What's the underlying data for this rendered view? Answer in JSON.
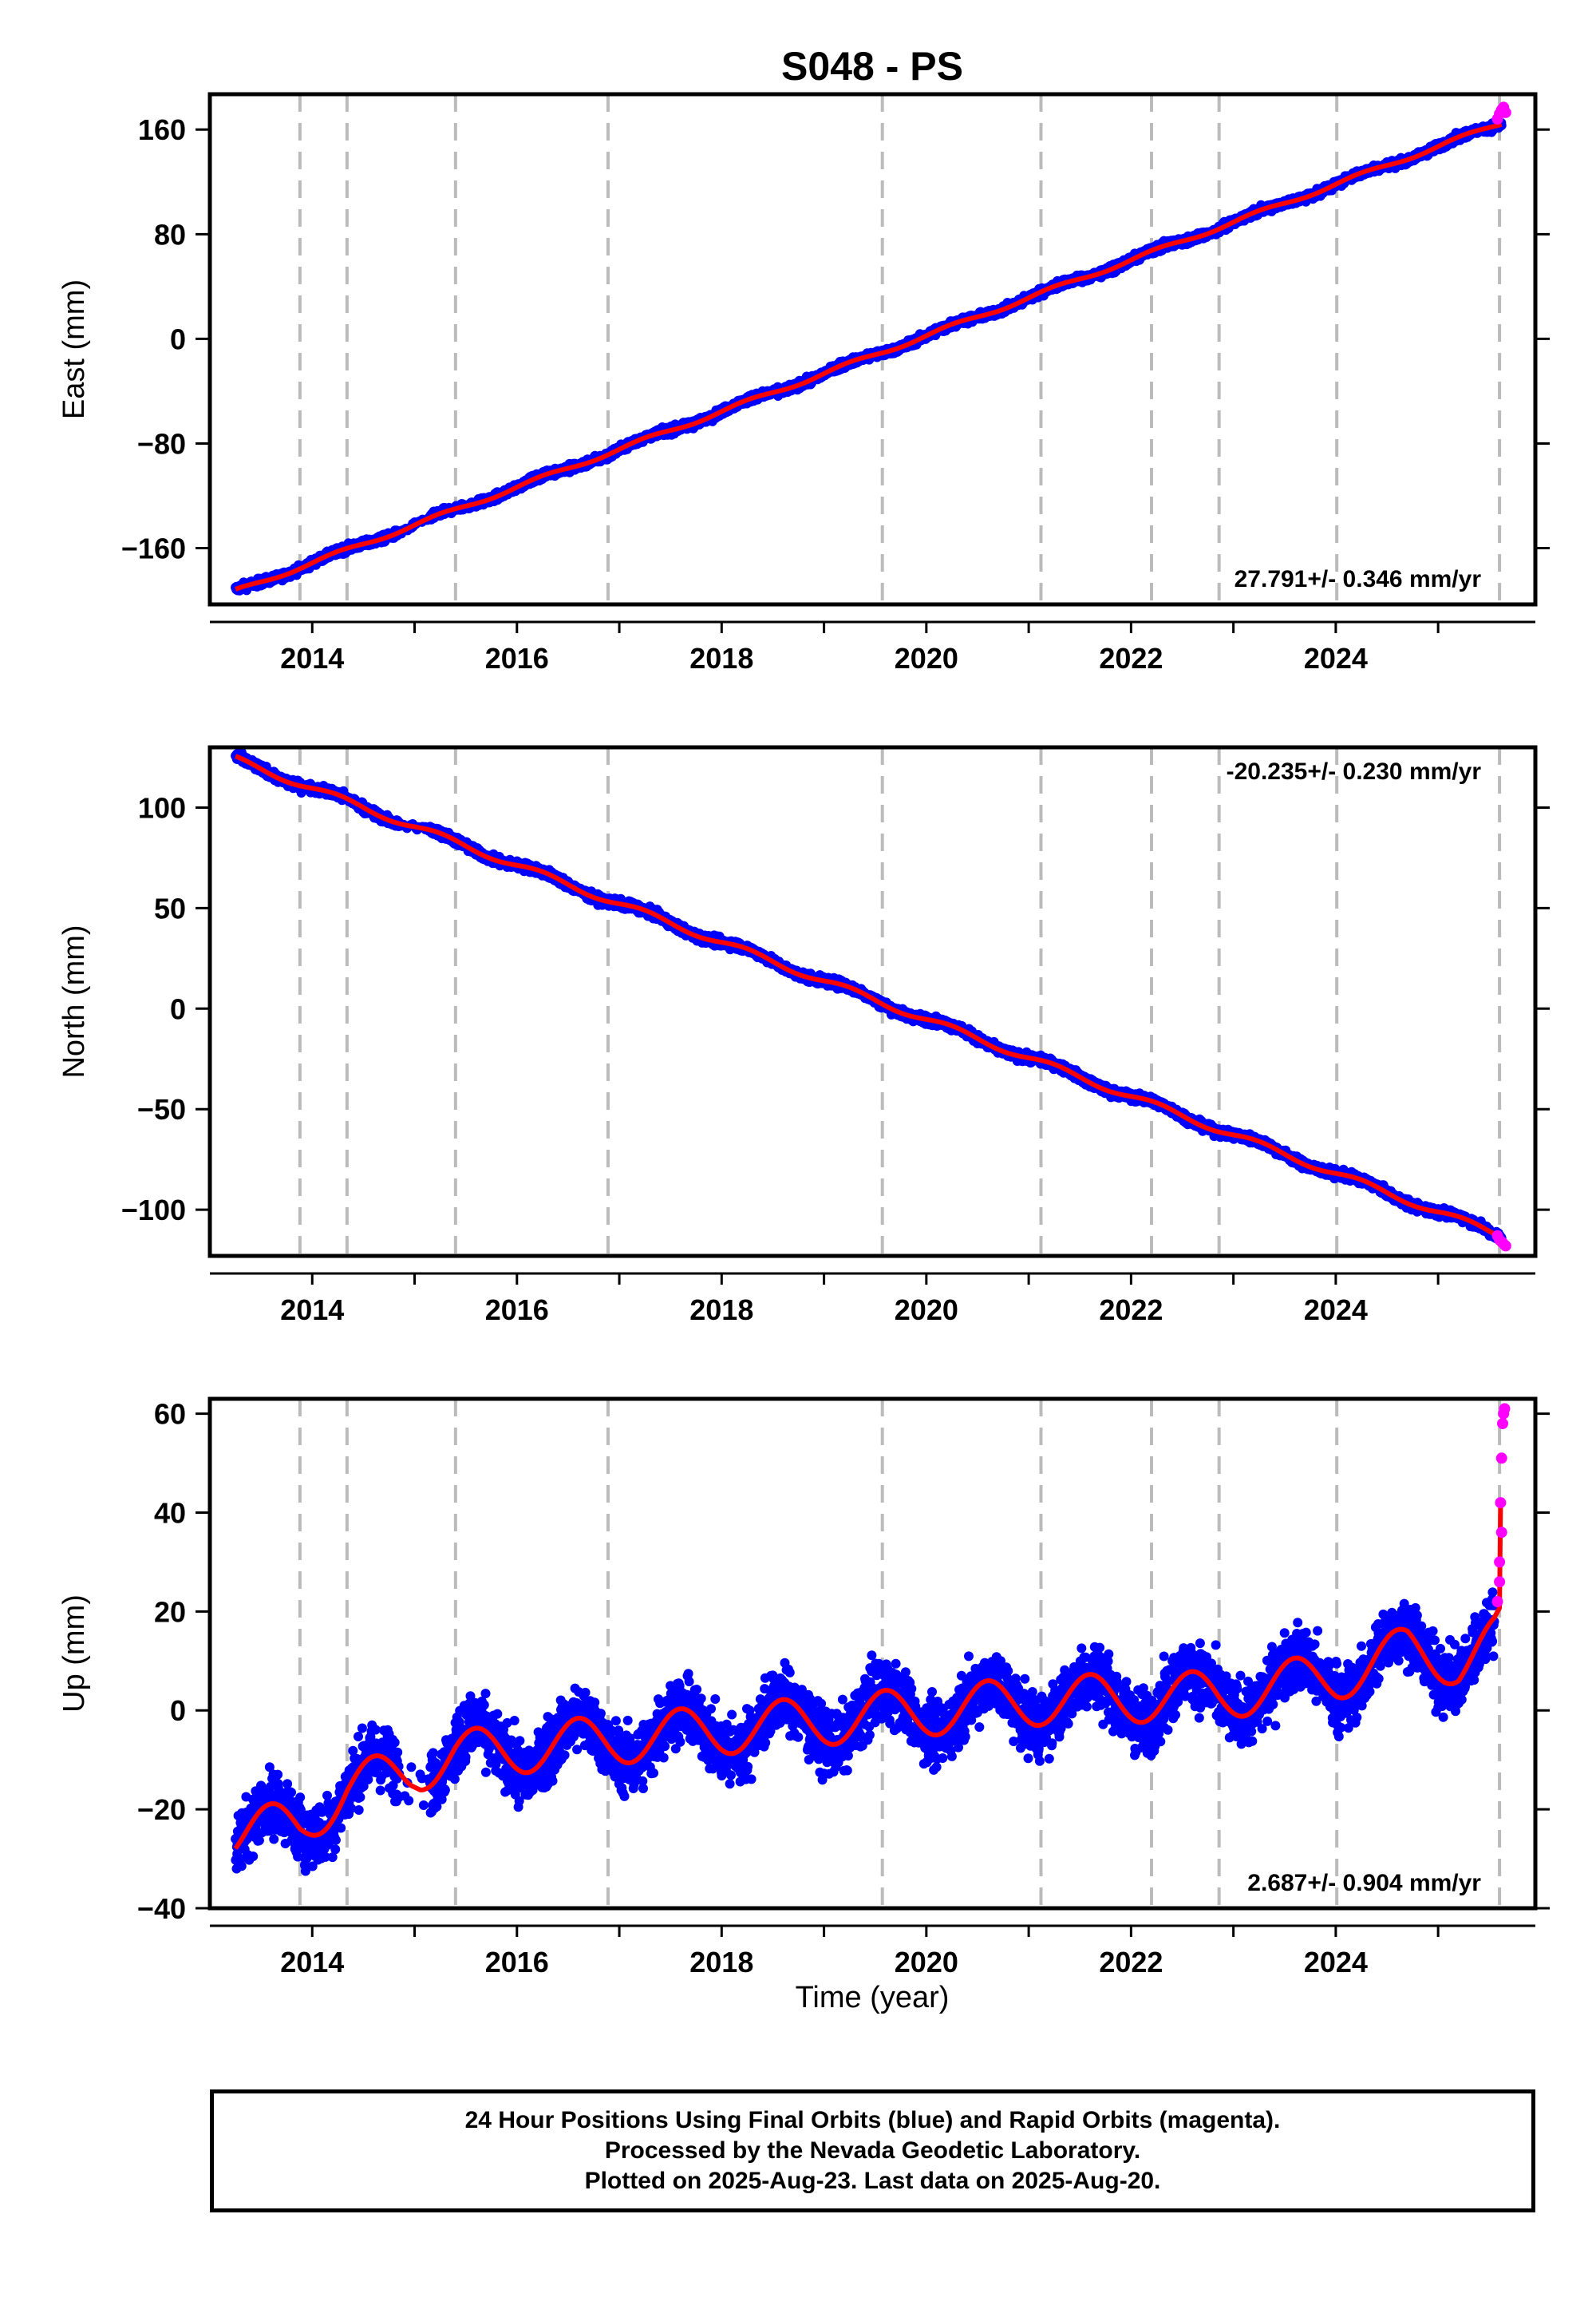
{
  "chart_data": {
    "title": "S048 - PS",
    "type": "scatter",
    "xlabel": "Time (year)",
    "xlim": [
      2013.0,
      2025.95
    ],
    "x_ticks": [
      "2014",
      "2016",
      "2018",
      "2020",
      "2022",
      "2024"
    ],
    "x_tick_values": [
      2014,
      2016,
      2018,
      2020,
      2022,
      2024
    ],
    "event_lines_year": [
      2013.88,
      2014.34,
      2015.4,
      2016.89,
      2019.57,
      2021.12,
      2022.2,
      2022.86,
      2024.01,
      2025.6
    ],
    "colors": {
      "final": "#0000ff",
      "rapid": "#ff00ff",
      "model": "#ff0000",
      "event": "#bbbbbb"
    },
    "panels": [
      {
        "name": "east",
        "ylabel": "East (mm)",
        "ylim": [
          -203,
          187
        ],
        "y_ticks": [
          -160,
          -80,
          0,
          80,
          160
        ],
        "rate_text": "27.791+/- 0.346 mm/yr",
        "rate_position": "bottom-right",
        "series": {
          "type": "trend",
          "start_year": 2013.25,
          "start_mm": -193,
          "end_year": 2025.62,
          "end_mm": 165,
          "noise_mm": 2.0
        },
        "rapid_points": [
          [
            2025.58,
            168
          ],
          [
            2025.6,
            172
          ],
          [
            2025.62,
            175
          ],
          [
            2025.64,
            177
          ],
          [
            2025.66,
            173
          ]
        ]
      },
      {
        "name": "north",
        "ylabel": "North (mm)",
        "ylim": [
          -123,
          130
        ],
        "y_ticks": [
          -100,
          -50,
          0,
          50,
          100
        ],
        "rate_text": "-20.235+/- 0.230 mm/yr",
        "rate_position": "top-right",
        "series": {
          "type": "trend",
          "start_year": 2013.25,
          "start_mm": 124,
          "end_year": 2025.62,
          "end_mm": -113,
          "noise_mm": 1.5
        },
        "rapid_points": [
          [
            2025.58,
            -113
          ],
          [
            2025.6,
            -115
          ],
          [
            2025.62,
            -116
          ],
          [
            2025.64,
            -117
          ],
          [
            2025.66,
            -118
          ]
        ]
      },
      {
        "name": "up",
        "ylabel": "Up (mm)",
        "ylim": [
          -40,
          63
        ],
        "y_ticks": [
          -40,
          -20,
          0,
          20,
          40,
          60
        ],
        "rate_text": "2.687+/- 0.904 mm/yr",
        "rate_position": "bottom-right",
        "series": {
          "type": "seasonal",
          "levels": [
            [
              2013.25,
              -25
            ],
            [
              2013.88,
              -23
            ],
            [
              2014.34,
              -16
            ],
            [
              2015.4,
              -9
            ],
            [
              2016.89,
              -6
            ],
            [
              2019.57,
              -1
            ],
            [
              2021.12,
              2
            ],
            [
              2022.86,
              3
            ],
            [
              2024.01,
              7
            ],
            [
              2024.7,
              12
            ],
            [
              2025.2,
              10
            ],
            [
              2025.55,
              14
            ]
          ],
          "amplitude_mm": 5,
          "noise_mm": 4.5
        },
        "rapid_points": [
          [
            2025.58,
            22
          ],
          [
            2025.6,
            30
          ],
          [
            2025.61,
            42
          ],
          [
            2025.62,
            51
          ],
          [
            2025.63,
            58
          ],
          [
            2025.64,
            60
          ],
          [
            2025.65,
            61
          ],
          [
            2025.62,
            36
          ],
          [
            2025.6,
            26
          ]
        ]
      }
    ]
  },
  "footer": {
    "line1": "24 Hour Positions Using Final Orbits (blue) and Rapid Orbits (magenta).",
    "line2": "Processed by the Nevada Geodetic Laboratory.",
    "line3": "Plotted on 2025-Aug-23. Last data on 2025-Aug-20."
  }
}
